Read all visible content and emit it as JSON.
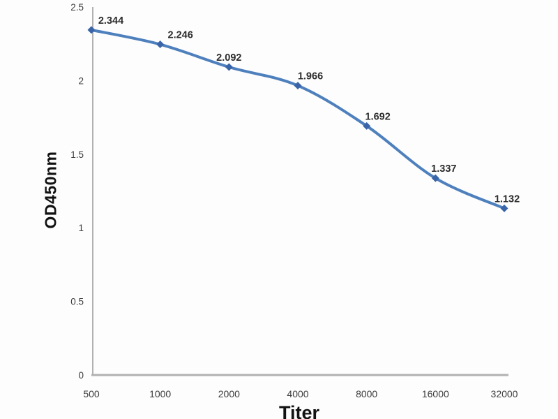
{
  "figure": {
    "background": "#fdfdfd"
  },
  "chart_data": {
    "type": "line",
    "title": "",
    "xlabel": "Titer",
    "ylabel": "OD450nm",
    "categories": [
      "500",
      "1000",
      "2000",
      "4000",
      "8000",
      "16000",
      "32000"
    ],
    "series": [
      {
        "name": "OD450nm",
        "values": [
          2.344,
          2.246,
          2.092,
          1.966,
          1.692,
          1.337,
          1.132
        ],
        "point_labels": [
          "2.344",
          "2.246",
          "2.092",
          "1.966",
          "1.692",
          "1.337",
          "1.132"
        ],
        "line_color": "#4e80bd",
        "marker_color": "#3a64a8",
        "marker": "diamond",
        "smooth": true
      }
    ],
    "y_ticks": [
      0,
      0.5,
      1,
      1.5,
      2,
      2.5
    ],
    "y_tick_labels": [
      "0",
      "0.5",
      "1",
      "1.5",
      "2",
      "2.5"
    ],
    "ylim": [
      0,
      2.5
    ],
    "grid": false,
    "legend": "none",
    "axis_color": "#b1b1b1",
    "tick_label_color": "#3c3c3c",
    "data_label_color": "#2d2d2d"
  }
}
